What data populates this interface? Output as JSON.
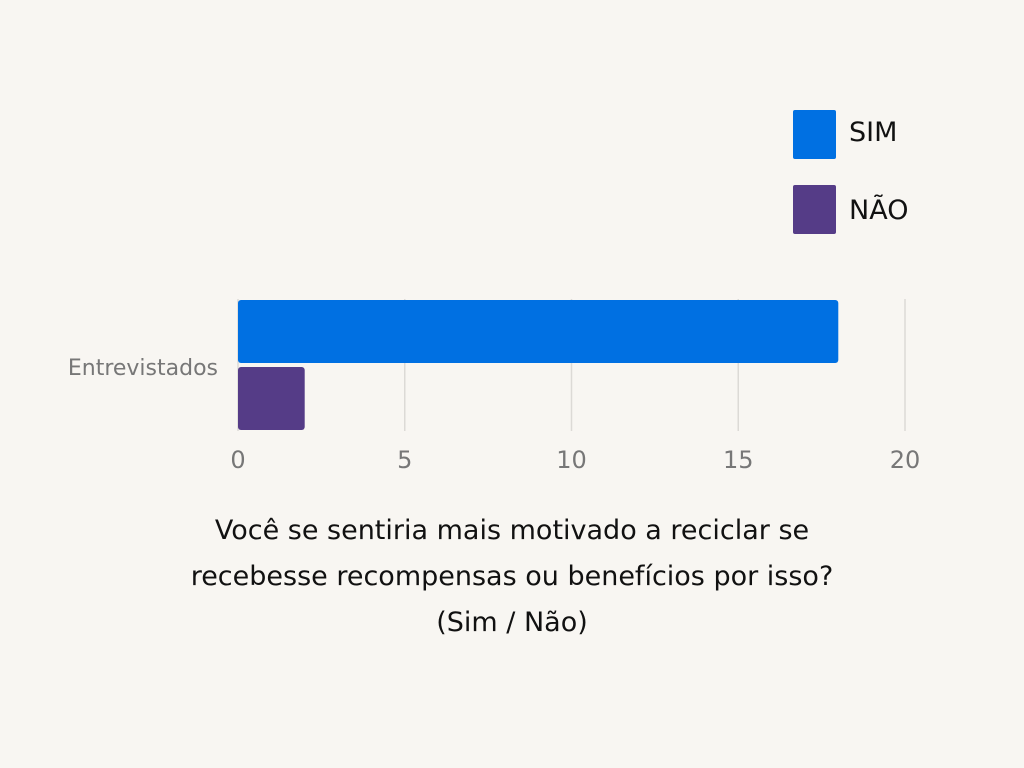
{
  "chart_data": {
    "type": "bar",
    "orientation": "horizontal",
    "categories": [
      "Entrevistados"
    ],
    "series": [
      {
        "name": "SIM",
        "values": [
          18
        ],
        "color": "#0070e2"
      },
      {
        "name": "NÃO",
        "values": [
          2
        ],
        "color": "#553c87"
      }
    ],
    "xlim": [
      0,
      20
    ],
    "xticks": [
      "0",
      "5",
      "10",
      "15",
      "20"
    ],
    "grid": true,
    "legend_position": "top-right",
    "title": ""
  },
  "caption": {
    "line1": "Você se sentiria mais motivado a reciclar se",
    "line2": "recebesse recompensas ou benefícios por isso?",
    "line3": "(Sim / Não)"
  }
}
